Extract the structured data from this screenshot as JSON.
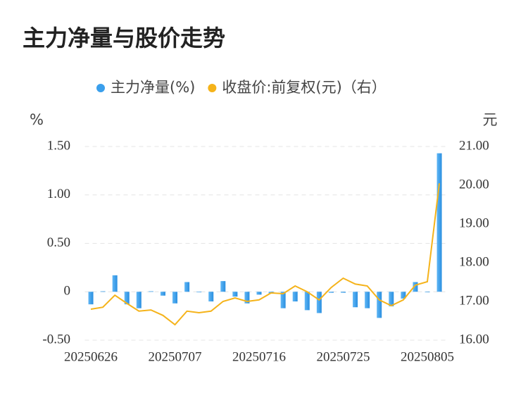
{
  "chart_data": {
    "type": "bar_line",
    "title": "主力净量与股价走势",
    "ylabel": "%",
    "y2label": "元",
    "categories": [
      "20250626",
      null,
      null,
      null,
      null,
      null,
      null,
      "20250707",
      null,
      null,
      null,
      null,
      null,
      null,
      "20250716",
      null,
      null,
      null,
      null,
      null,
      null,
      "20250725",
      null,
      null,
      null,
      null,
      null,
      null,
      "20250805",
      null
    ],
    "series": [
      {
        "name": "主力净量(%)",
        "type": "bar",
        "color": "#3a9fec",
        "values": [
          -0.13,
          0.005,
          0.17,
          -0.13,
          -0.17,
          0.005,
          -0.04,
          -0.12,
          0.1,
          0.0,
          -0.1,
          0.11,
          -0.05,
          -0.12,
          -0.03,
          -0.02,
          -0.17,
          -0.1,
          -0.19,
          -0.22,
          -0.01,
          -0.01,
          -0.16,
          -0.17,
          -0.27,
          -0.15,
          -0.07,
          0.1,
          0.0,
          1.43
        ]
      },
      {
        "name": "收盘价:前复权(元)（右）",
        "type": "line",
        "axis": "y2",
        "color": "#f5b31a",
        "values": [
          16.8,
          16.85,
          17.16,
          16.95,
          16.75,
          16.78,
          16.64,
          16.4,
          16.75,
          16.71,
          16.75,
          17.0,
          17.09,
          17.0,
          17.04,
          17.22,
          17.2,
          17.4,
          17.25,
          17.04,
          17.36,
          17.6,
          17.45,
          17.4,
          17.04,
          16.89,
          17.04,
          17.42,
          17.51,
          20.05
        ]
      }
    ],
    "ylim": [
      -0.5,
      1.5
    ],
    "yticks": [
      {
        "value": -0.5,
        "label": "-0.50"
      },
      0,
      {
        "value": 0.5,
        "label": "0.50"
      },
      {
        "value": 1.0,
        "label": "1.00"
      },
      {
        "value": 1.5,
        "label": "1.50"
      }
    ],
    "y2lim": [
      16.0,
      21.0
    ],
    "y2ticks": [
      {
        "value": 16,
        "label": "16.00"
      },
      {
        "value": 17,
        "label": "17.00"
      },
      {
        "value": 18,
        "label": "18.00"
      },
      {
        "value": 19,
        "label": "19.00"
      },
      {
        "value": 20,
        "label": "20.00"
      },
      {
        "value": 21,
        "label": "21.00"
      }
    ],
    "grid": true
  }
}
